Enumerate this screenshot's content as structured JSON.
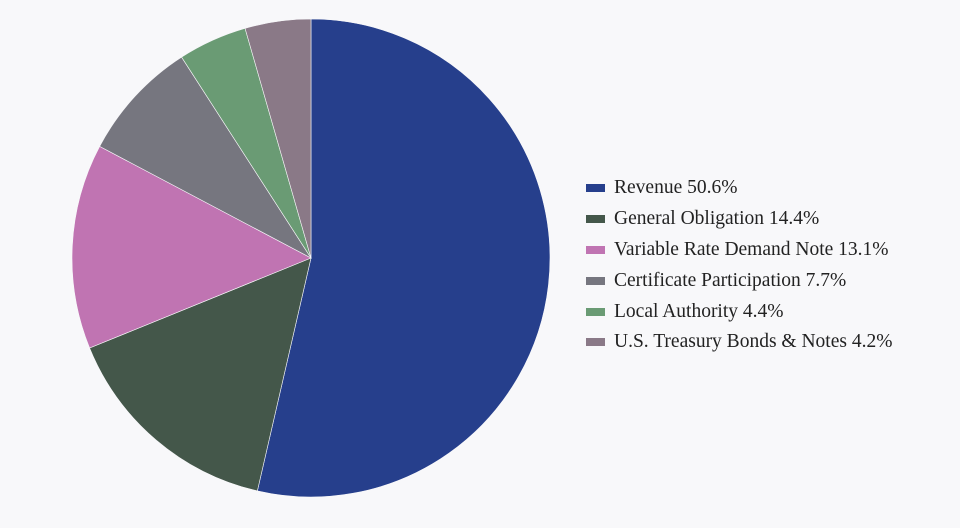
{
  "chart_data": {
    "type": "pie",
    "title": "",
    "legend_position": "right",
    "slices": [
      {
        "label": "Revenue",
        "percent_text": "50.6%",
        "value": 50.6,
        "color": "#263f8c"
      },
      {
        "label": "General Obligation",
        "percent_text": "14.4%",
        "value": 14.4,
        "color": "#44574a"
      },
      {
        "label": "Variable Rate Demand Note",
        "percent_text": "13.1%",
        "value": 13.1,
        "color": "#c074b2"
      },
      {
        "label": "Certificate Participation",
        "percent_text": "7.7%",
        "value": 7.7,
        "color": "#76767f"
      },
      {
        "label": "Local Authority",
        "percent_text": "4.4%",
        "value": 4.4,
        "color": "#6a9b74"
      },
      {
        "label": "U.S. Treasury Bonds & Notes",
        "percent_text": "4.2%",
        "value": 4.2,
        "color": "#8a7987"
      }
    ]
  },
  "legend": {
    "items": [
      "Revenue 50.6%",
      "General Obligation 14.4%",
      "Variable Rate Demand Note 13.1%",
      "Certificate Participation 7.7%",
      "Local Authority 4.4%",
      "U.S. Treasury Bonds & Notes 4.2%"
    ]
  }
}
